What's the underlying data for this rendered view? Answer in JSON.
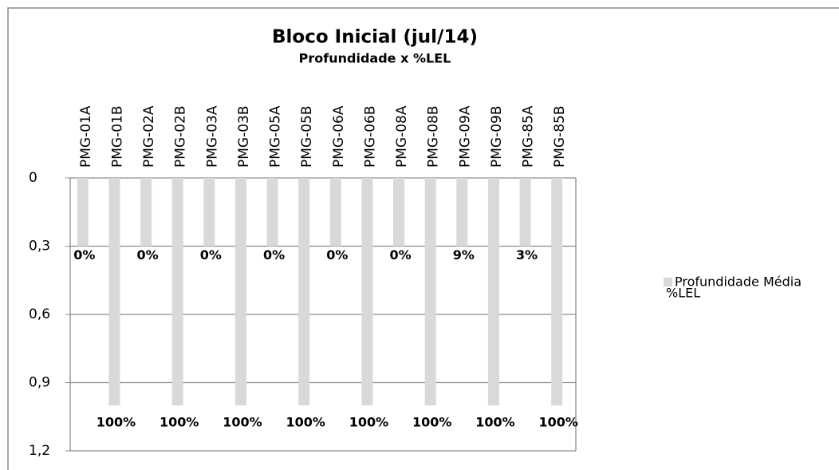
{
  "chart_data": {
    "type": "bar",
    "title": "Bloco Inicial (jul/14)",
    "subtitle": "Profundidade x %LEL",
    "categories": [
      "PMG-01A",
      "PMG-01B",
      "PMG-02A",
      "PMG-02B",
      "PMG-03A",
      "PMG-03B",
      "PMG-05A",
      "PMG-05B",
      "PMG-06A",
      "PMG-06B",
      "PMG-08A",
      "PMG-08B",
      "PMG-09A",
      "PMG-09B",
      "PMG-85A",
      "PMG-85B"
    ],
    "series": [
      {
        "name": "Profundidade Média",
        "color": "#d9d9d9",
        "values": [
          0.3,
          1.0,
          0.3,
          1.0,
          0.3,
          1.0,
          0.3,
          1.0,
          0.3,
          1.0,
          0.3,
          1.0,
          0.3,
          1.0,
          0.3,
          1.0
        ]
      },
      {
        "name": "%LEL",
        "axis": "y2",
        "values": [
          0,
          100,
          0,
          100,
          0,
          100,
          0,
          100,
          0,
          100,
          0,
          100,
          9,
          100,
          3,
          100
        ],
        "value_labels": [
          "0%",
          "100%",
          "0%",
          "100%",
          "0%",
          "100%",
          "0%",
          "100%",
          "0%",
          "100%",
          "0%",
          "100%",
          "9%",
          "100%",
          "3%",
          "100%"
        ]
      }
    ],
    "ylim": [
      0,
      1.2
    ],
    "y_inverted": true,
    "yticks": [
      0,
      {
        "value": 0.3,
        "label": "0,3"
      },
      {
        "value": 0.6,
        "label": "0,6"
      },
      {
        "value": 0.9,
        "label": "0,9"
      },
      {
        "value": 1.2,
        "label": "1,2"
      }
    ],
    "grid": true,
    "legend": "right"
  }
}
